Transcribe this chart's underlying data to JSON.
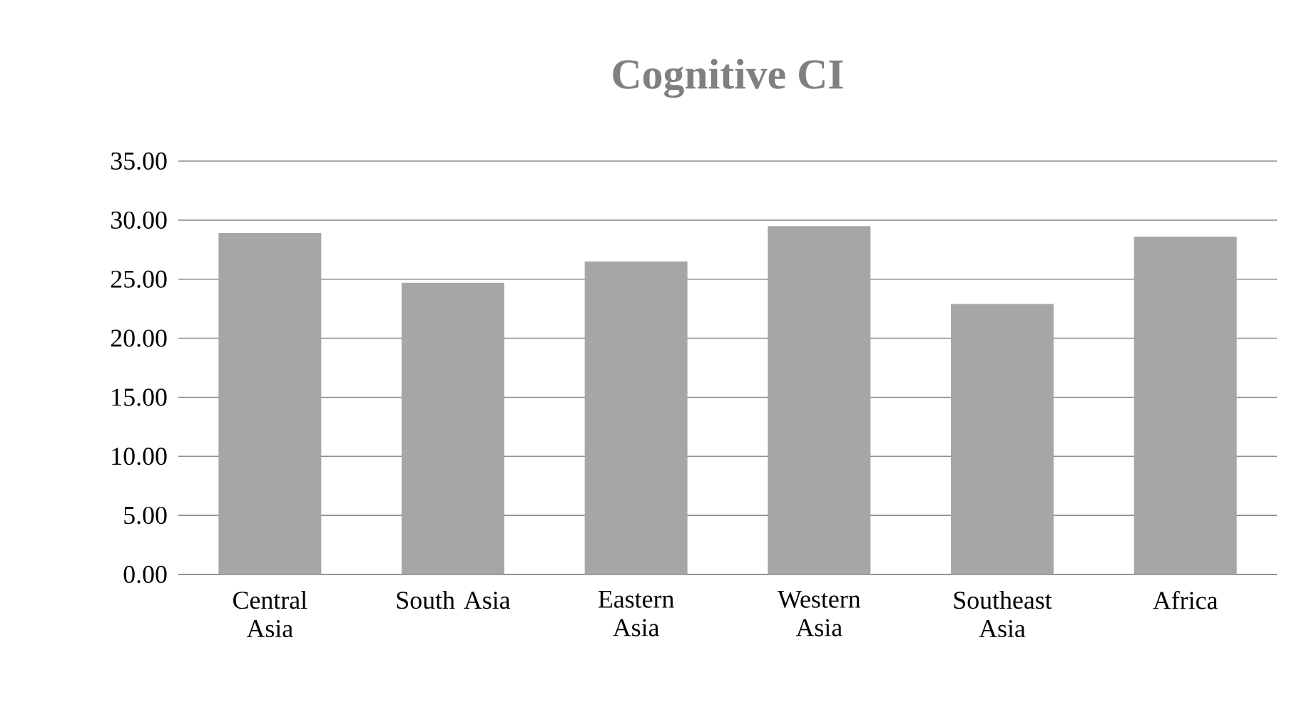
{
  "chart_data": {
    "type": "bar",
    "title": "Cognitive CI",
    "categories": [
      "Central Asia",
      "South Asia",
      "Eastern Asia",
      "Western Asia",
      "Southeast Asia",
      "Africa"
    ],
    "values": [
      28.9,
      24.7,
      26.5,
      29.5,
      22.9,
      28.6
    ],
    "color": "#a6a6a6",
    "ylim": [
      0,
      35
    ],
    "yticks": [
      {
        "value": 0,
        "label": "0.00"
      },
      {
        "value": 5,
        "label": "5.00"
      },
      {
        "value": 10,
        "label": "10.00"
      },
      {
        "value": 15,
        "label": "15.00"
      },
      {
        "value": 20,
        "label": "20.00"
      },
      {
        "value": 25,
        "label": "25.00"
      },
      {
        "value": 30,
        "label": "30.00"
      },
      {
        "value": 35,
        "label": "35.00"
      }
    ],
    "grid": "y"
  }
}
